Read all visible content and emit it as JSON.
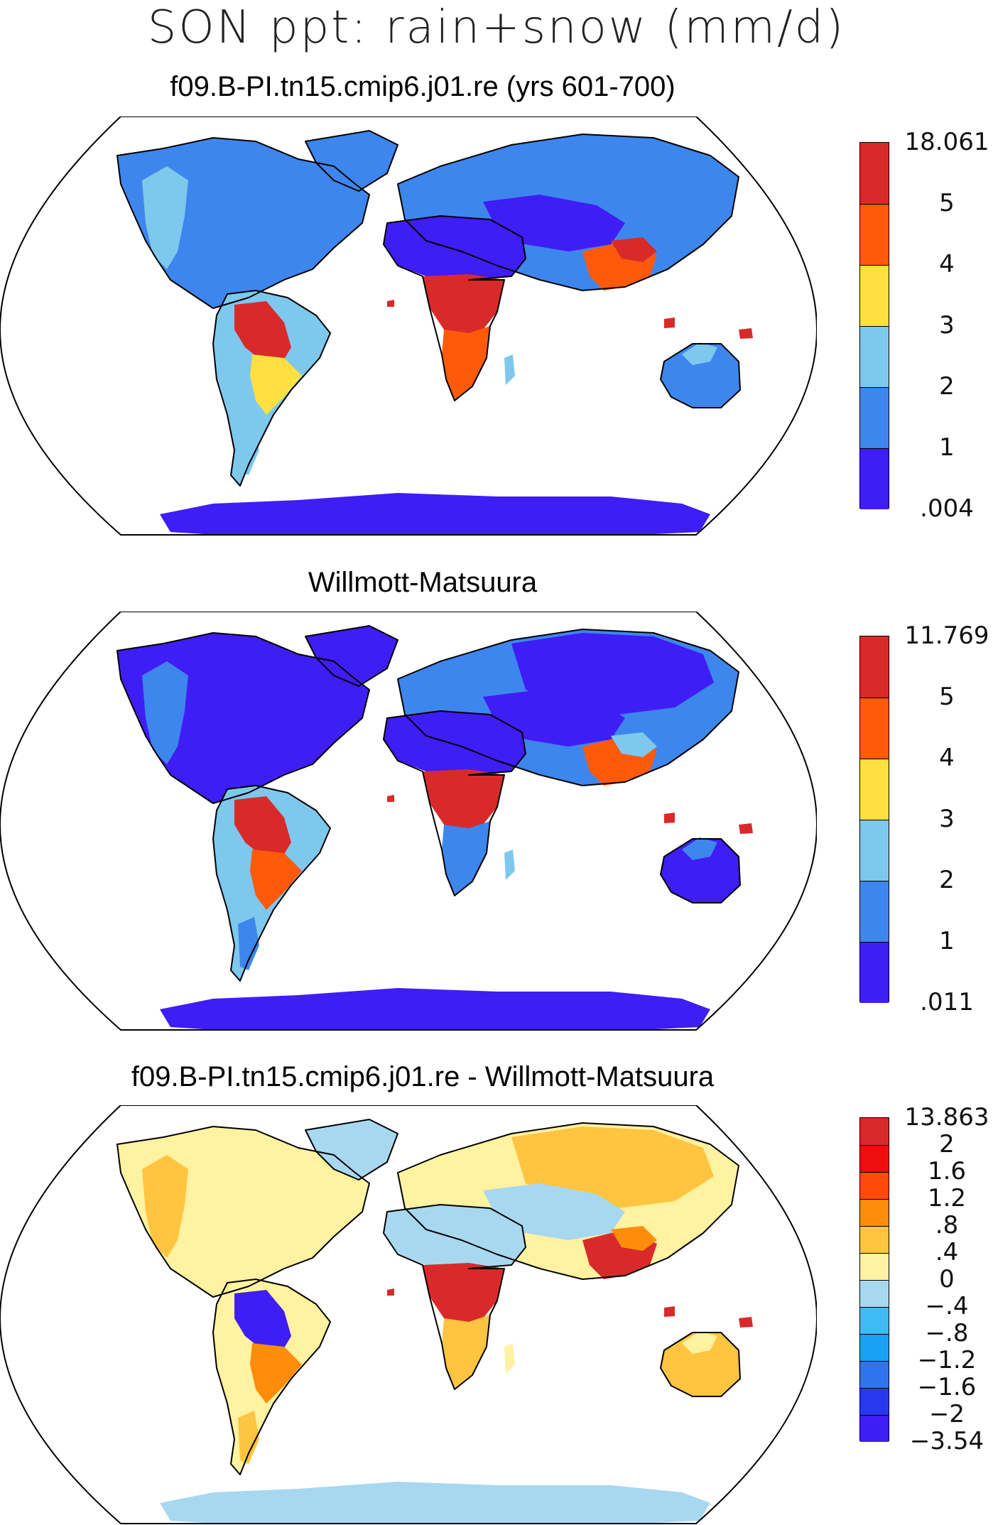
{
  "figure": {
    "title": "SON ppt: rain+snow (mm/d)"
  },
  "panels": [
    {
      "title": "f09.B-PI.tn15.cmip6.j01.re (yrs 601-700)",
      "legend": {
        "labels": [
          "18.061",
          "5",
          "4",
          "3",
          "2",
          "1",
          ".004"
        ],
        "colors": [
          "#d92a2a",
          "#ff5a0a",
          "#ffe040",
          "#7ec8ee",
          "#3d86ee",
          "#3f1df5"
        ]
      },
      "fills": {
        "americas_base": "#3d86ee",
        "namerica_west": "#7ec8ee",
        "samerica_base": "#7ec8ee",
        "amazon": "#d92a2a",
        "samerica_mid": "#ffe040",
        "samerica_south": "#7ec8ee",
        "greenland": "#3d86ee",
        "eurasia_base": "#3d86ee",
        "siberia": "#3d86ee",
        "central_asia": "#3f1df5",
        "south_asia": "#ff5a0a",
        "southeast_asia": "#d92a2a",
        "africa_north": "#3f1df5",
        "africa_central": "#d92a2a",
        "africa_south": "#ff5a0a",
        "madagascar": "#7ec8ee",
        "australia": "#3d86ee",
        "australia_north": "#7ec8ee",
        "islands": "#d92a2a",
        "antarctica": "#3f1df5"
      }
    },
    {
      "title": "Willmott-Matsuura",
      "legend": {
        "labels": [
          "11.769",
          "5",
          "4",
          "3",
          "2",
          "1",
          ".011"
        ],
        "colors": [
          "#d92a2a",
          "#ff5a0a",
          "#ffe040",
          "#7ec8ee",
          "#3d86ee",
          "#3f1df5"
        ]
      },
      "fills": {
        "americas_base": "#3f1df5",
        "namerica_west": "#3d86ee",
        "samerica_base": "#7ec8ee",
        "amazon": "#d92a2a",
        "samerica_mid": "#ff5a0a",
        "samerica_south": "#3d86ee",
        "greenland": "#3f1df5",
        "eurasia_base": "#3d86ee",
        "siberia": "#3f1df5",
        "central_asia": "#3f1df5",
        "south_asia": "#ff5a0a",
        "southeast_asia": "#7ec8ee",
        "africa_north": "#3f1df5",
        "africa_central": "#d92a2a",
        "africa_south": "#3d86ee",
        "madagascar": "#7ec8ee",
        "australia": "#3f1df5",
        "australia_north": "#3d86ee",
        "islands": "#d92a2a",
        "antarctica": "#3f1df5"
      }
    },
    {
      "title": "f09.B-PI.tn15.cmip6.j01.re - Willmott-Matsuura",
      "legend": {
        "labels": [
          "13.863",
          "2",
          "1.6",
          "1.2",
          ".8",
          ".4",
          "0",
          "−.4",
          "−.8",
          "−1.2",
          "−1.6",
          "−2",
          "−3.54"
        ],
        "colors": [
          "#d92a2a",
          "#ee0e0e",
          "#ff4a0a",
          "#ff8c0a",
          "#ffc440",
          "#fff2a0",
          "#a8d8f0",
          "#40baf5",
          "#1aa0f5",
          "#2e74ee",
          "#2838ee",
          "#3f1df5"
        ]
      },
      "fills": {
        "americas_base": "#fff2a0",
        "namerica_west": "#ffc440",
        "samerica_base": "#fff2a0",
        "amazon": "#3f1df5",
        "samerica_mid": "#ff8c0a",
        "samerica_south": "#ffc440",
        "greenland": "#a8d8f0",
        "eurasia_base": "#fff2a0",
        "siberia": "#ffc440",
        "central_asia": "#a8d8f0",
        "south_asia": "#d92a2a",
        "southeast_asia": "#ff8c0a",
        "africa_north": "#a8d8f0",
        "africa_central": "#d92a2a",
        "africa_south": "#ffc440",
        "madagascar": "#fff2a0",
        "australia": "#ffc440",
        "australia_north": "#fff2a0",
        "islands": "#d92a2a",
        "antarctica": "#a8d8f0"
      }
    }
  ]
}
